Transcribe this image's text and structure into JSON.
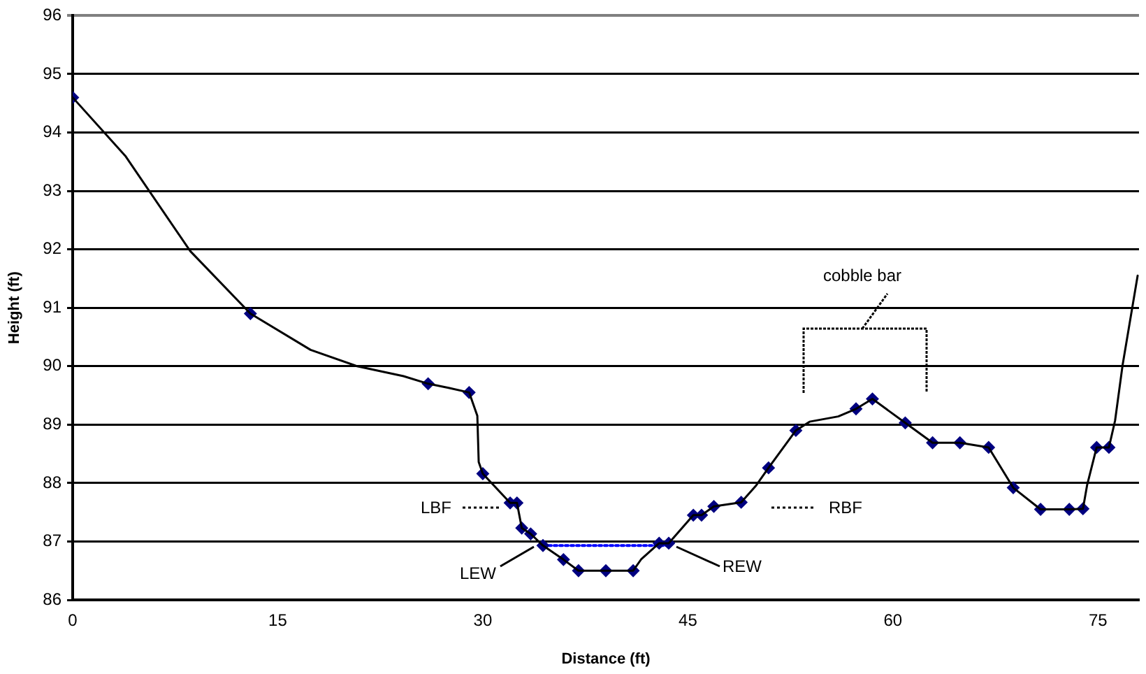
{
  "chart_data": {
    "type": "line",
    "xlabel": "Distance (ft)",
    "ylabel": "Height (ft)",
    "xlim": [
      0,
      78
    ],
    "xticks": [
      0,
      15,
      30,
      45,
      60,
      75
    ],
    "ylim": [
      86,
      96
    ],
    "yticks": [
      86,
      87,
      88,
      89,
      90,
      91,
      92,
      93,
      94,
      95,
      96
    ],
    "grid": "y",
    "legend": false,
    "series": [
      {
        "type": "line",
        "color": "#000000",
        "marker": "none",
        "line_style": "solid",
        "x": [
          0,
          3.85,
          8.6,
          13,
          17.4,
          20.8,
          24.2,
          26,
          27.5,
          29,
          29.6,
          29.7,
          30,
          32,
          32.5,
          32.85,
          33.5,
          34.4,
          35.9,
          37,
          39,
          41,
          41.6,
          42.9,
          43.6,
          45.4,
          46,
          46.9,
          48.9,
          50,
          50.9,
          52.9,
          53.9,
          56,
          57.3,
          58.5,
          60.9,
          62.9,
          64.9,
          67,
          68.8,
          70.8,
          72.9,
          73.9,
          74.2,
          74.9,
          75.8,
          76.25,
          76.8,
          77.9
        ],
        "values": [
          94.6,
          93.6,
          91.97,
          90.9,
          90.28,
          90,
          89.83,
          89.7,
          89.63,
          89.55,
          89.15,
          88.36,
          88.16,
          87.66,
          87.66,
          87.23,
          87.13,
          86.93,
          86.69,
          86.5,
          86.5,
          86.5,
          86.7,
          86.97,
          86.97,
          87.45,
          87.45,
          87.6,
          87.67,
          87.96,
          88.26,
          88.9,
          89.05,
          89.14,
          89.27,
          89.44,
          89.03,
          88.69,
          88.69,
          88.61,
          87.92,
          87.55,
          87.55,
          87.56,
          87.96,
          88.61,
          88.61,
          89.07,
          90.02,
          91.55
        ]
      },
      {
        "type": "scatter",
        "color": "#000080",
        "marker": "diamond",
        "x": [
          0,
          13,
          26,
          29,
          30,
          32,
          32.5,
          32.85,
          33.5,
          34.4,
          35.9,
          37,
          39,
          41,
          42.9,
          43.6,
          45.4,
          46,
          46.9,
          48.9,
          50.9,
          52.9,
          57.3,
          58.5,
          60.9,
          62.9,
          64.9,
          67,
          68.8,
          70.8,
          72.9,
          73.9,
          74.9,
          75.8
        ],
        "values": [
          94.6,
          90.9,
          89.7,
          89.55,
          88.16,
          87.66,
          87.66,
          87.23,
          87.13,
          86.93,
          86.69,
          86.5,
          86.5,
          86.5,
          86.97,
          86.97,
          87.45,
          87.45,
          87.6,
          87.67,
          88.26,
          88.9,
          89.27,
          89.44,
          89.03,
          88.69,
          88.69,
          88.61,
          87.92,
          87.55,
          87.55,
          87.56,
          88.61,
          88.61
        ]
      },
      {
        "type": "line",
        "color": "#0000ff",
        "marker": "none",
        "line_style": "dotted",
        "x": [
          34.4,
          43.6
        ],
        "values": [
          86.93,
          86.93
        ]
      }
    ],
    "annotations": [
      "cobble bar",
      "LBF",
      "RBF",
      "LEW",
      "REW"
    ]
  }
}
